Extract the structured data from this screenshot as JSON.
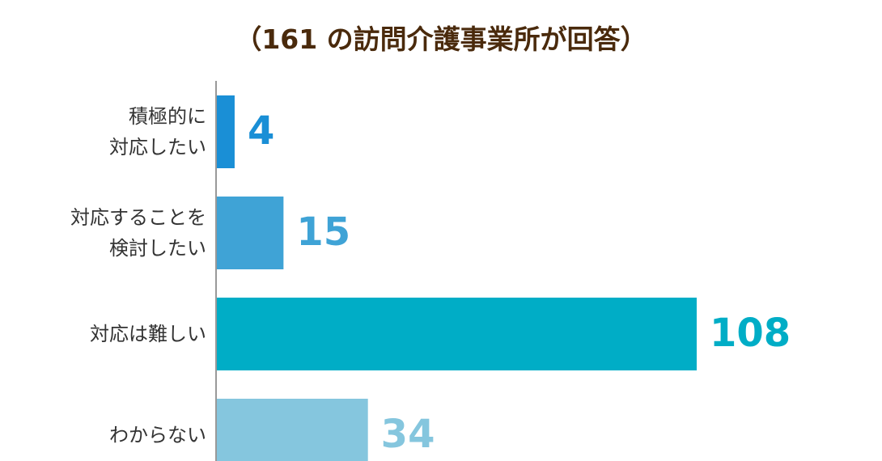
{
  "chart_data": {
    "type": "bar",
    "orientation": "horizontal",
    "subtitle": "（161 の訪問介護事業所が回答）",
    "categories": [
      "積極的に\n対応したい",
      "対応することを\n検討したい",
      "対応は難しい",
      "わからない"
    ],
    "values": [
      4,
      15,
      108,
      34
    ],
    "colors": [
      "#1a8fd6",
      "#3fa3d6",
      "#00adc6",
      "#85c6de"
    ]
  }
}
